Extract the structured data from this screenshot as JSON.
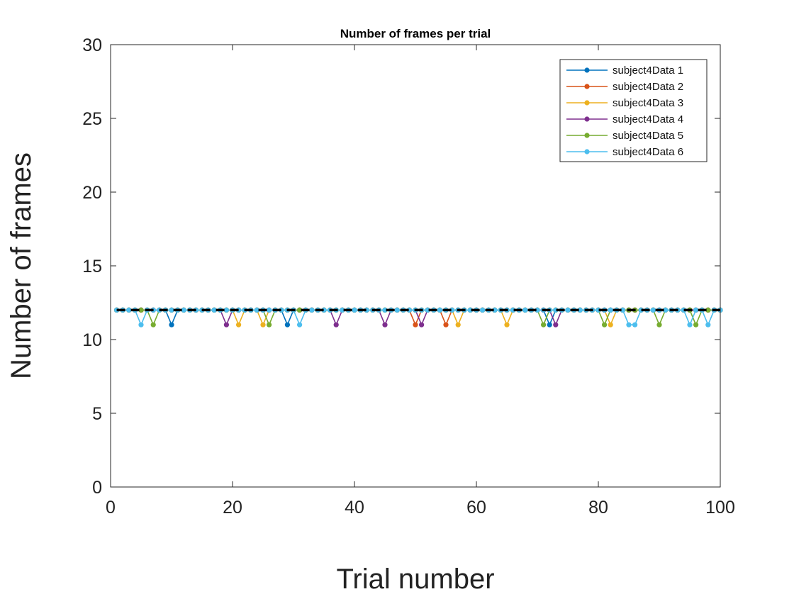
{
  "chart_data": {
    "type": "line",
    "title": "Number of frames per trial",
    "xlabel": "Trial number",
    "ylabel": "Number of frames",
    "xlim": [
      0,
      100
    ],
    "ylim": [
      0,
      30
    ],
    "xticks": [
      0,
      20,
      40,
      60,
      80,
      100
    ],
    "yticks": [
      0,
      5,
      10,
      15,
      20,
      25,
      30
    ],
    "xtick_labels": [
      "0",
      "20",
      "40",
      "60",
      "80",
      "100"
    ],
    "ytick_labels": [
      "0",
      "5",
      "10",
      "15",
      "20",
      "25",
      "30"
    ],
    "grid": false,
    "legend_position": "top-right",
    "baseline": {
      "value": 12,
      "style": "dashed",
      "color": "#000000"
    },
    "x_range": [
      1,
      100
    ],
    "default_value": 12,
    "series": [
      {
        "name": "subject4Data 1",
        "color": "#0072BD",
        "dips": [
          10,
          29,
          72
        ]
      },
      {
        "name": "subject4Data 2",
        "color": "#D95319",
        "dips": [
          50,
          55
        ]
      },
      {
        "name": "subject4Data 3",
        "color": "#EDB120",
        "dips": [
          21,
          25,
          57,
          65,
          82
        ]
      },
      {
        "name": "subject4Data 4",
        "color": "#7E2F8E",
        "dips": [
          19,
          37,
          45,
          51,
          73
        ]
      },
      {
        "name": "subject4Data 5",
        "color": "#77AC30",
        "dips": [
          7,
          26,
          71,
          81,
          90,
          96
        ]
      },
      {
        "name": "subject4Data 6",
        "color": "#4DBEEE",
        "dips": [
          5,
          31,
          85,
          86,
          95,
          98
        ]
      }
    ],
    "dip_value": 11
  }
}
